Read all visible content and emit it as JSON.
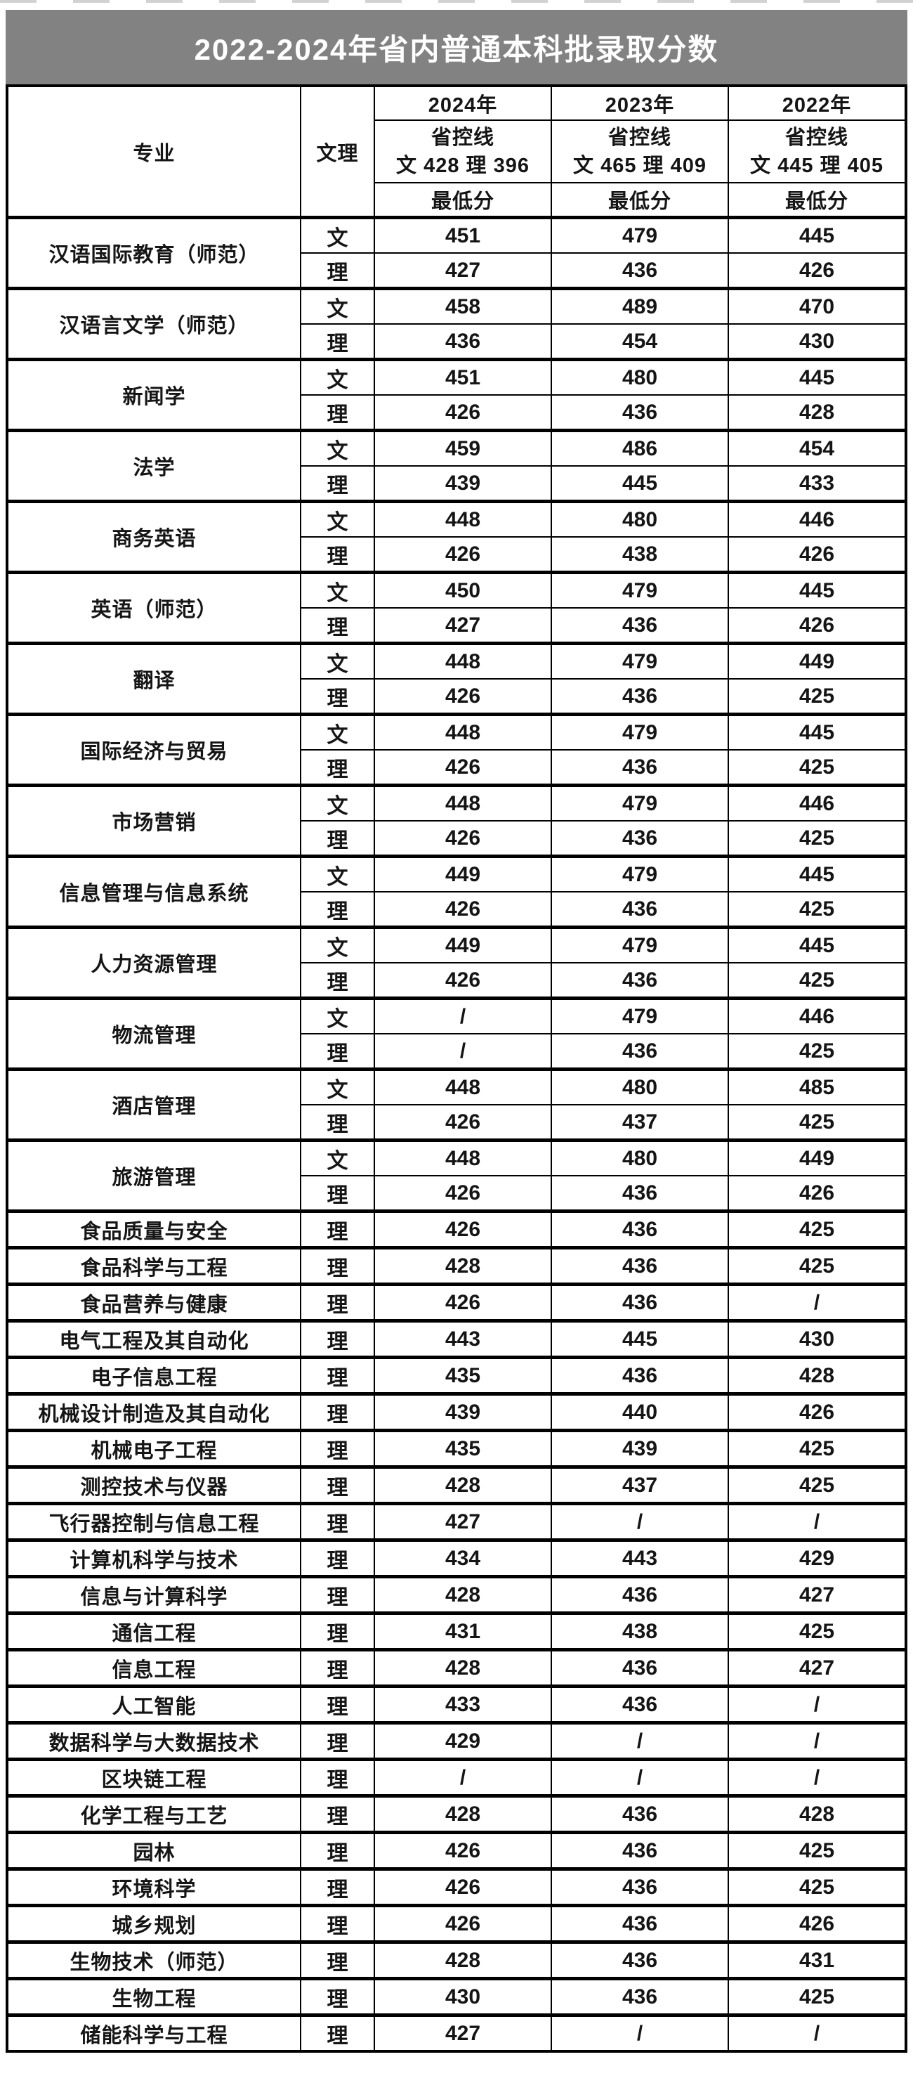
{
  "page": {
    "background": "#ffffff",
    "top_edge_artifact_color": "#9a9a9a"
  },
  "title": {
    "text": "2022-2024年省内普通本科批录取分数",
    "background": "#828282",
    "text_color": "#ffffff"
  },
  "table": {
    "border_color": "#000000",
    "header": {
      "major_label": "专业",
      "track_label": "文理",
      "years": [
        {
          "year": "2024年",
          "control_label": "省控线",
          "control_values": "文 428 理 396",
          "min_label": "最低分"
        },
        {
          "year": "2023年",
          "control_label": "省控线",
          "control_values": "文 465 理 409",
          "min_label": "最低分"
        },
        {
          "year": "2022年",
          "control_label": "省控线",
          "control_values": "文 445 理 405",
          "min_label": "最低分"
        }
      ]
    },
    "majors": [
      {
        "name": "汉语国际教育（师范）",
        "rows": [
          {
            "track": "文",
            "scores": [
              "451",
              "479",
              "445"
            ]
          },
          {
            "track": "理",
            "scores": [
              "427",
              "436",
              "426"
            ]
          }
        ]
      },
      {
        "name": "汉语言文学（师范）",
        "rows": [
          {
            "track": "文",
            "scores": [
              "458",
              "489",
              "470"
            ]
          },
          {
            "track": "理",
            "scores": [
              "436",
              "454",
              "430"
            ]
          }
        ]
      },
      {
        "name": "新闻学",
        "rows": [
          {
            "track": "文",
            "scores": [
              "451",
              "480",
              "445"
            ]
          },
          {
            "track": "理",
            "scores": [
              "426",
              "436",
              "428"
            ]
          }
        ]
      },
      {
        "name": "法学",
        "rows": [
          {
            "track": "文",
            "scores": [
              "459",
              "486",
              "454"
            ]
          },
          {
            "track": "理",
            "scores": [
              "439",
              "445",
              "433"
            ]
          }
        ]
      },
      {
        "name": "商务英语",
        "rows": [
          {
            "track": "文",
            "scores": [
              "448",
              "480",
              "446"
            ]
          },
          {
            "track": "理",
            "scores": [
              "426",
              "438",
              "426"
            ]
          }
        ]
      },
      {
        "name": "英语（师范）",
        "rows": [
          {
            "track": "文",
            "scores": [
              "450",
              "479",
              "445"
            ]
          },
          {
            "track": "理",
            "scores": [
              "427",
              "436",
              "426"
            ]
          }
        ]
      },
      {
        "name": "翻译",
        "rows": [
          {
            "track": "文",
            "scores": [
              "448",
              "479",
              "449"
            ]
          },
          {
            "track": "理",
            "scores": [
              "426",
              "436",
              "425"
            ]
          }
        ]
      },
      {
        "name": "国际经济与贸易",
        "rows": [
          {
            "track": "文",
            "scores": [
              "448",
              "479",
              "445"
            ]
          },
          {
            "track": "理",
            "scores": [
              "426",
              "436",
              "425"
            ]
          }
        ]
      },
      {
        "name": "市场营销",
        "rows": [
          {
            "track": "文",
            "scores": [
              "448",
              "479",
              "446"
            ]
          },
          {
            "track": "理",
            "scores": [
              "426",
              "436",
              "425"
            ]
          }
        ]
      },
      {
        "name": "信息管理与信息系统",
        "rows": [
          {
            "track": "文",
            "scores": [
              "449",
              "479",
              "445"
            ]
          },
          {
            "track": "理",
            "scores": [
              "426",
              "436",
              "425"
            ]
          }
        ]
      },
      {
        "name": "人力资源管理",
        "rows": [
          {
            "track": "文",
            "scores": [
              "449",
              "479",
              "445"
            ]
          },
          {
            "track": "理",
            "scores": [
              "426",
              "436",
              "425"
            ]
          }
        ]
      },
      {
        "name": "物流管理",
        "rows": [
          {
            "track": "文",
            "scores": [
              "/",
              "479",
              "446"
            ]
          },
          {
            "track": "理",
            "scores": [
              "/",
              "436",
              "425"
            ]
          }
        ]
      },
      {
        "name": "酒店管理",
        "rows": [
          {
            "track": "文",
            "scores": [
              "448",
              "480",
              "485"
            ]
          },
          {
            "track": "理",
            "scores": [
              "426",
              "437",
              "425"
            ]
          }
        ]
      },
      {
        "name": "旅游管理",
        "rows": [
          {
            "track": "文",
            "scores": [
              "448",
              "480",
              "449"
            ]
          },
          {
            "track": "理",
            "scores": [
              "426",
              "436",
              "426"
            ]
          }
        ]
      },
      {
        "name": "食品质量与安全",
        "rows": [
          {
            "track": "理",
            "scores": [
              "426",
              "436",
              "425"
            ]
          }
        ]
      },
      {
        "name": "食品科学与工程",
        "rows": [
          {
            "track": "理",
            "scores": [
              "428",
              "436",
              "425"
            ]
          }
        ]
      },
      {
        "name": "食品营养与健康",
        "rows": [
          {
            "track": "理",
            "scores": [
              "426",
              "436",
              "/"
            ]
          }
        ]
      },
      {
        "name": "电气工程及其自动化",
        "rows": [
          {
            "track": "理",
            "scores": [
              "443",
              "445",
              "430"
            ]
          }
        ]
      },
      {
        "name": "电子信息工程",
        "rows": [
          {
            "track": "理",
            "scores": [
              "435",
              "436",
              "428"
            ]
          }
        ]
      },
      {
        "name": "机械设计制造及其自动化",
        "rows": [
          {
            "track": "理",
            "scores": [
              "439",
              "440",
              "426"
            ]
          }
        ]
      },
      {
        "name": "机械电子工程",
        "rows": [
          {
            "track": "理",
            "scores": [
              "435",
              "439",
              "425"
            ]
          }
        ]
      },
      {
        "name": "测控技术与仪器",
        "rows": [
          {
            "track": "理",
            "scores": [
              "428",
              "437",
              "425"
            ]
          }
        ]
      },
      {
        "name": "飞行器控制与信息工程",
        "rows": [
          {
            "track": "理",
            "scores": [
              "427",
              "/",
              "/"
            ]
          }
        ]
      },
      {
        "name": "计算机科学与技术",
        "rows": [
          {
            "track": "理",
            "scores": [
              "434",
              "443",
              "429"
            ]
          }
        ]
      },
      {
        "name": "信息与计算科学",
        "rows": [
          {
            "track": "理",
            "scores": [
              "428",
              "436",
              "427"
            ]
          }
        ]
      },
      {
        "name": "通信工程",
        "rows": [
          {
            "track": "理",
            "scores": [
              "431",
              "438",
              "425"
            ]
          }
        ]
      },
      {
        "name": "信息工程",
        "rows": [
          {
            "track": "理",
            "scores": [
              "428",
              "436",
              "427"
            ]
          }
        ]
      },
      {
        "name": "人工智能",
        "rows": [
          {
            "track": "理",
            "scores": [
              "433",
              "436",
              "/"
            ]
          }
        ]
      },
      {
        "name": "数据科学与大数据技术",
        "rows": [
          {
            "track": "理",
            "scores": [
              "429",
              "/",
              "/"
            ]
          }
        ]
      },
      {
        "name": "区块链工程",
        "rows": [
          {
            "track": "理",
            "scores": [
              "/",
              "/",
              "/"
            ]
          }
        ]
      },
      {
        "name": "化学工程与工艺",
        "rows": [
          {
            "track": "理",
            "scores": [
              "428",
              "436",
              "428"
            ]
          }
        ]
      },
      {
        "name": "园林",
        "rows": [
          {
            "track": "理",
            "scores": [
              "426",
              "436",
              "425"
            ]
          }
        ]
      },
      {
        "name": "环境科学",
        "rows": [
          {
            "track": "理",
            "scores": [
              "426",
              "436",
              "425"
            ]
          }
        ]
      },
      {
        "name": "城乡规划",
        "rows": [
          {
            "track": "理",
            "scores": [
              "426",
              "436",
              "426"
            ]
          }
        ]
      },
      {
        "name": "生物技术（师范）",
        "rows": [
          {
            "track": "理",
            "scores": [
              "428",
              "436",
              "431"
            ]
          }
        ]
      },
      {
        "name": "生物工程",
        "rows": [
          {
            "track": "理",
            "scores": [
              "430",
              "436",
              "425"
            ]
          }
        ]
      },
      {
        "name": "储能科学与工程",
        "rows": [
          {
            "track": "理",
            "scores": [
              "427",
              "/",
              "/"
            ]
          }
        ]
      }
    ]
  }
}
